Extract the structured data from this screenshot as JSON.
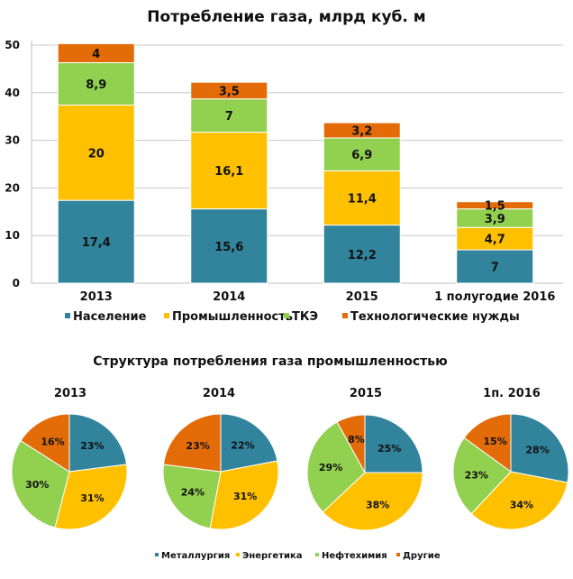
{
  "colors": {
    "naselenie": "#31849b",
    "promyshlennost": "#ffc000",
    "tke": "#92d050",
    "tech": "#e36c09",
    "grid": "#c8c8c8",
    "axis": "#bfbfbf"
  },
  "chart_data": [
    {
      "type": "bar",
      "stacked": true,
      "title": "Потребление газа, млрд куб. м",
      "xlabel": "",
      "ylabel": "",
      "ylim": [
        0,
        50
      ],
      "yticks": [
        "0",
        "10",
        "20",
        "30",
        "40",
        "50"
      ],
      "grid": true,
      "legend_position": "bottom",
      "categories": [
        "2013",
        "2014",
        "2015",
        "1 полугодие 2016"
      ],
      "series": [
        {
          "name": "Население",
          "color": "#31849b",
          "values": [
            17.4,
            15.6,
            12.2,
            7
          ],
          "labels": [
            "17,4",
            "15,6",
            "12,2",
            "7"
          ]
        },
        {
          "name": "Промышленность",
          "color": "#ffc000",
          "values": [
            20,
            16.1,
            11.4,
            4.7
          ],
          "labels": [
            "20",
            "16,1",
            "11,4",
            "4,7"
          ]
        },
        {
          "name": "ТКЭ",
          "color": "#92d050",
          "values": [
            8.9,
            7,
            6.9,
            3.9
          ],
          "labels": [
            "8,9",
            "7",
            "6,9",
            "3,9"
          ]
        },
        {
          "name": "Технологические нужды",
          "color": "#e36c09",
          "values": [
            4,
            3.5,
            3.2,
            1.5
          ],
          "labels": [
            "4",
            "3,5",
            "3,2",
            "1,5"
          ]
        }
      ]
    },
    {
      "type": "pie",
      "title": "Структура потребления газа промышленностью",
      "legend_position": "bottom",
      "legend": [
        {
          "name": "Металлургия",
          "color": "#31849b"
        },
        {
          "name": "Энергетика",
          "color": "#ffc000"
        },
        {
          "name": "Нефтехимия",
          "color": "#92d050"
        },
        {
          "name": "Другие",
          "color": "#e36c09"
        }
      ],
      "pies": [
        {
          "title": "2013",
          "values": [
            23,
            31,
            30,
            16
          ],
          "labels": [
            "23%",
            "31%",
            "30%",
            "16%"
          ]
        },
        {
          "title": "2014",
          "values": [
            22,
            31,
            24,
            23
          ],
          "labels": [
            "22%",
            "31%",
            "24%",
            "23%"
          ]
        },
        {
          "title": "2015",
          "values": [
            25,
            38,
            29,
            8
          ],
          "labels": [
            "25%",
            "38%",
            "29%",
            "8%"
          ]
        },
        {
          "title": "1п. 2016",
          "values": [
            28,
            34,
            23,
            15
          ],
          "labels": [
            "28%",
            "34%",
            "23%",
            "15%"
          ]
        }
      ]
    }
  ]
}
